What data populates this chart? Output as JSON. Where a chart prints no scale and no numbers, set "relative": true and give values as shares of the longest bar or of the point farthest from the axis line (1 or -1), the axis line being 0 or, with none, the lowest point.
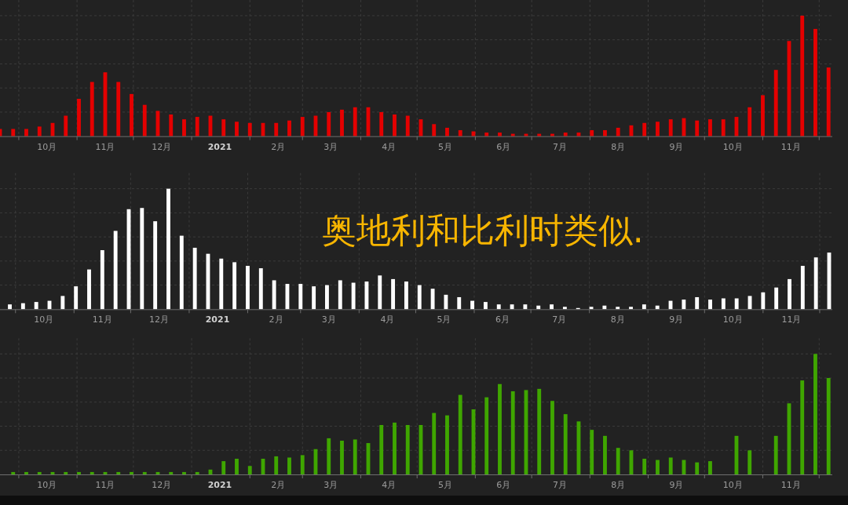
{
  "chart_data": [
    {
      "type": "bar",
      "relative": true,
      "color": "#e50000",
      "grid": true,
      "xlim": [
        "2020-09-21",
        "2021-12-08"
      ],
      "x": [
        "2020-09-21",
        "2020-09-28",
        "2020-10-05",
        "2020-10-12",
        "2020-10-19",
        "2020-10-26",
        "2020-11-02",
        "2020-11-09",
        "2020-11-16",
        "2020-11-23",
        "2020-11-30",
        "2020-12-07",
        "2020-12-14",
        "2020-12-21",
        "2020-12-28",
        "2021-01-04",
        "2021-01-11",
        "2021-01-18",
        "2021-01-25",
        "2021-02-01",
        "2021-02-08",
        "2021-02-15",
        "2021-02-22",
        "2021-03-01",
        "2021-03-08",
        "2021-03-15",
        "2021-03-22",
        "2021-03-29",
        "2021-04-05",
        "2021-04-12",
        "2021-04-19",
        "2021-04-26",
        "2021-05-03",
        "2021-05-10",
        "2021-05-17",
        "2021-05-24",
        "2021-05-31",
        "2021-06-07",
        "2021-06-14",
        "2021-06-21",
        "2021-06-28",
        "2021-07-05",
        "2021-07-12",
        "2021-07-19",
        "2021-07-26",
        "2021-08-02",
        "2021-08-09",
        "2021-08-16",
        "2021-08-23",
        "2021-08-30",
        "2021-09-06",
        "2021-09-13",
        "2021-09-20",
        "2021-09-27",
        "2021-10-04",
        "2021-10-11",
        "2021-10-18",
        "2021-10-25",
        "2021-11-01",
        "2021-11-08",
        "2021-11-15",
        "2021-11-22",
        "2021-11-29",
        "2021-12-06"
      ],
      "values": [
        0.06,
        0.06,
        0.06,
        0.08,
        0.11,
        0.17,
        0.31,
        0.45,
        0.53,
        0.45,
        0.35,
        0.26,
        0.21,
        0.18,
        0.14,
        0.16,
        0.17,
        0.14,
        0.12,
        0.11,
        0.11,
        0.11,
        0.13,
        0.16,
        0.17,
        0.2,
        0.22,
        0.24,
        0.24,
        0.2,
        0.18,
        0.17,
        0.14,
        0.1,
        0.07,
        0.05,
        0.04,
        0.03,
        0.03,
        0.02,
        0.02,
        0.02,
        0.02,
        0.03,
        0.03,
        0.05,
        0.05,
        0.07,
        0.09,
        0.11,
        0.12,
        0.14,
        0.15,
        0.13,
        0.14,
        0.14,
        0.16,
        0.24,
        0.34,
        0.55,
        0.79,
        1,
        0.89,
        0.57
      ],
      "xticks": [
        {
          "value": "2020-10-01",
          "label": null
        },
        {
          "value": "2020-10-16",
          "label": "10月"
        },
        {
          "value": "2020-11-01",
          "label": null
        },
        {
          "value": "2020-11-16",
          "label": "11月"
        },
        {
          "value": "2020-12-01",
          "label": null
        },
        {
          "value": "2020-12-16",
          "label": "12月"
        },
        {
          "value": "2021-01-01",
          "label": null
        },
        {
          "value": "2021-01-16",
          "label": "2021"
        },
        {
          "value": "2021-02-01",
          "label": null
        },
        {
          "value": "2021-02-16",
          "label": "2月"
        },
        {
          "value": "2021-03-01",
          "label": null
        },
        {
          "value": "2021-03-16",
          "label": "3月"
        },
        {
          "value": "2021-04-01",
          "label": null
        },
        {
          "value": "2021-04-16",
          "label": "4月"
        },
        {
          "value": "2021-05-01",
          "label": null
        },
        {
          "value": "2021-05-16",
          "label": "5月"
        },
        {
          "value": "2021-06-01",
          "label": null
        },
        {
          "value": "2021-06-16",
          "label": "6月"
        },
        {
          "value": "2021-07-01",
          "label": null
        },
        {
          "value": "2021-07-16",
          "label": "7月"
        },
        {
          "value": "2021-08-01",
          "label": null
        },
        {
          "value": "2021-08-16",
          "label": "8月"
        },
        {
          "value": "2021-09-01",
          "label": null
        },
        {
          "value": "2021-09-16",
          "label": "9月"
        },
        {
          "value": "2021-10-01",
          "label": null
        },
        {
          "value": "2021-10-16",
          "label": "10月"
        },
        {
          "value": "2021-11-01",
          "label": null
        },
        {
          "value": "2021-11-16",
          "label": "11月"
        },
        {
          "value": "2021-12-01",
          "label": null
        }
      ]
    },
    {
      "type": "bar",
      "relative": true,
      "color": "#ffffff",
      "grid": true,
      "xlim": [
        "2020-09-22T19:00",
        "2021-12-07T16:00"
      ],
      "annotations": [
        "奥地利和比利时类似."
      ],
      "x": [
        "2020-09-28",
        "2020-10-05",
        "2020-10-12",
        "2020-10-19",
        "2020-10-26",
        "2020-11-02",
        "2020-11-09",
        "2020-11-16",
        "2020-11-23",
        "2020-11-30",
        "2020-12-07",
        "2020-12-14",
        "2020-12-21",
        "2020-12-28",
        "2021-01-04",
        "2021-01-11",
        "2021-01-18",
        "2021-01-25",
        "2021-02-01",
        "2021-02-08",
        "2021-02-15",
        "2021-02-22",
        "2021-03-01",
        "2021-03-08",
        "2021-03-15",
        "2021-03-22",
        "2021-03-29",
        "2021-04-05",
        "2021-04-12",
        "2021-04-19",
        "2021-04-26",
        "2021-05-03",
        "2021-05-10",
        "2021-05-17",
        "2021-05-24",
        "2021-05-31",
        "2021-06-07",
        "2021-06-14",
        "2021-06-21",
        "2021-06-28",
        "2021-07-05",
        "2021-07-12",
        "2021-07-19",
        "2021-07-26",
        "2021-08-02",
        "2021-08-09",
        "2021-08-16",
        "2021-08-23",
        "2021-08-30",
        "2021-09-06",
        "2021-09-13",
        "2021-09-20",
        "2021-09-27",
        "2021-10-04",
        "2021-10-11",
        "2021-10-18",
        "2021-10-25",
        "2021-11-01",
        "2021-11-08",
        "2021-11-15",
        "2021-11-22",
        "2021-11-29",
        "2021-12-06"
      ],
      "values": [
        0.04,
        0.05,
        0.06,
        0.07,
        0.11,
        0.19,
        0.33,
        0.49,
        0.65,
        0.83,
        0.84,
        0.73,
        1,
        0.61,
        0.51,
        0.46,
        0.42,
        0.39,
        0.36,
        0.34,
        0.24,
        0.21,
        0.21,
        0.19,
        0.2,
        0.24,
        0.22,
        0.23,
        0.28,
        0.25,
        0.23,
        0.2,
        0.17,
        0.12,
        0.1,
        0.07,
        0.06,
        0.04,
        0.04,
        0.04,
        0.03,
        0.04,
        0.02,
        0.01,
        0.02,
        0.03,
        0.02,
        0.02,
        0.04,
        0.03,
        0.07,
        0.08,
        0.1,
        0.08,
        0.09,
        0.09,
        0.11,
        0.14,
        0.18,
        0.25,
        0.36,
        0.43,
        0.47
      ],
      "xticks": [
        {
          "value": "2020-10-01",
          "label": null
        },
        {
          "value": "2020-10-16",
          "label": "10月"
        },
        {
          "value": "2020-11-01",
          "label": null
        },
        {
          "value": "2020-11-16",
          "label": "11月"
        },
        {
          "value": "2020-12-01",
          "label": null
        },
        {
          "value": "2020-12-16",
          "label": "12月"
        },
        {
          "value": "2021-01-01",
          "label": null
        },
        {
          "value": "2021-01-16",
          "label": "2021"
        },
        {
          "value": "2021-02-01",
          "label": null
        },
        {
          "value": "2021-02-16",
          "label": "2月"
        },
        {
          "value": "2021-03-01",
          "label": null
        },
        {
          "value": "2021-03-16",
          "label": "3月"
        },
        {
          "value": "2021-04-01",
          "label": null
        },
        {
          "value": "2021-04-16",
          "label": "4月"
        },
        {
          "value": "2021-05-01",
          "label": null
        },
        {
          "value": "2021-05-16",
          "label": "5月"
        },
        {
          "value": "2021-06-01",
          "label": null
        },
        {
          "value": "2021-06-16",
          "label": "6月"
        },
        {
          "value": "2021-07-01",
          "label": null
        },
        {
          "value": "2021-07-16",
          "label": "7月"
        },
        {
          "value": "2021-08-01",
          "label": null
        },
        {
          "value": "2021-08-16",
          "label": "8月"
        },
        {
          "value": "2021-09-01",
          "label": null
        },
        {
          "value": "2021-09-16",
          "label": "9月"
        },
        {
          "value": "2021-10-01",
          "label": null
        },
        {
          "value": "2021-10-16",
          "label": "10月"
        },
        {
          "value": "2021-11-01",
          "label": null
        },
        {
          "value": "2021-11-16",
          "label": "11月"
        },
        {
          "value": "2021-12-01",
          "label": null
        }
      ]
    },
    {
      "type": "bar",
      "relative": true,
      "color": "#3fa600",
      "grid": true,
      "xlim": [
        "2020-09-21",
        "2021-12-08"
      ],
      "x": [
        "2020-09-28",
        "2020-10-05",
        "2020-10-12",
        "2020-10-19",
        "2020-10-26",
        "2020-11-02",
        "2020-11-09",
        "2020-11-16",
        "2020-11-23",
        "2020-11-30",
        "2020-12-07",
        "2020-12-14",
        "2020-12-21",
        "2020-12-28",
        "2021-01-04",
        "2021-01-11",
        "2021-01-18",
        "2021-01-25",
        "2021-02-01",
        "2021-02-08",
        "2021-02-15",
        "2021-02-22",
        "2021-03-01",
        "2021-03-08",
        "2021-03-15",
        "2021-03-22",
        "2021-03-29",
        "2021-04-05",
        "2021-04-12",
        "2021-04-19",
        "2021-04-26",
        "2021-05-03",
        "2021-05-10",
        "2021-05-17",
        "2021-05-24",
        "2021-05-31",
        "2021-06-07",
        "2021-06-14",
        "2021-06-21",
        "2021-06-28",
        "2021-07-05",
        "2021-07-12",
        "2021-07-19",
        "2021-07-26",
        "2021-08-02",
        "2021-08-09",
        "2021-08-16",
        "2021-08-23",
        "2021-08-30",
        "2021-09-06",
        "2021-09-13",
        "2021-09-20",
        "2021-09-27",
        "2021-10-04",
        "2021-10-11",
        "2021-10-18",
        "2021-10-25",
        "2021-11-01",
        "2021-11-08",
        "2021-11-15",
        "2021-11-22",
        "2021-11-29",
        "2021-12-06"
      ],
      "values": [
        0.02,
        0.02,
        0.02,
        0.02,
        0.02,
        0.02,
        0.02,
        0.02,
        0.02,
        0.02,
        0.02,
        0.02,
        0.02,
        0.02,
        0.02,
        0.04,
        0.11,
        0.13,
        0.07,
        0.13,
        0.15,
        0.14,
        0.16,
        0.21,
        0.3,
        0.28,
        0.29,
        0.26,
        0.41,
        0.43,
        0.41,
        0.41,
        0.51,
        0.49,
        0.66,
        0.54,
        0.64,
        0.75,
        0.69,
        0.7,
        0.71,
        0.61,
        0.5,
        0.44,
        0.37,
        0.32,
        0.22,
        0.2,
        0.13,
        0.12,
        0.14,
        0.12,
        0.1,
        0.11,
        null,
        0.32,
        0.2,
        null,
        0.32,
        0.59,
        0.78,
        1,
        0.8
      ],
      "xticks": [
        {
          "value": "2020-10-01",
          "label": null
        },
        {
          "value": "2020-10-16",
          "label": "10月"
        },
        {
          "value": "2020-11-01",
          "label": null
        },
        {
          "value": "2020-11-16",
          "label": "11月"
        },
        {
          "value": "2020-12-01",
          "label": null
        },
        {
          "value": "2020-12-16",
          "label": "12月"
        },
        {
          "value": "2021-01-01",
          "label": null
        },
        {
          "value": "2021-01-16",
          "label": "2021"
        },
        {
          "value": "2021-02-01",
          "label": null
        },
        {
          "value": "2021-02-16",
          "label": "2月"
        },
        {
          "value": "2021-03-01",
          "label": null
        },
        {
          "value": "2021-03-16",
          "label": "3月"
        },
        {
          "value": "2021-04-01",
          "label": null
        },
        {
          "value": "2021-04-16",
          "label": "4月"
        },
        {
          "value": "2021-05-01",
          "label": null
        },
        {
          "value": "2021-05-16",
          "label": "5月"
        },
        {
          "value": "2021-06-01",
          "label": null
        },
        {
          "value": "2021-06-16",
          "label": "6月"
        },
        {
          "value": "2021-07-01",
          "label": null
        },
        {
          "value": "2021-07-16",
          "label": "7月"
        },
        {
          "value": "2021-08-01",
          "label": null
        },
        {
          "value": "2021-08-16",
          "label": "8月"
        },
        {
          "value": "2021-09-01",
          "label": null
        },
        {
          "value": "2021-09-16",
          "label": "9月"
        },
        {
          "value": "2021-10-01",
          "label": null
        },
        {
          "value": "2021-10-16",
          "label": "10月"
        },
        {
          "value": "2021-11-01",
          "label": null
        },
        {
          "value": "2021-11-16",
          "label": "11月"
        },
        {
          "value": "2021-12-01",
          "label": null
        }
      ]
    }
  ]
}
